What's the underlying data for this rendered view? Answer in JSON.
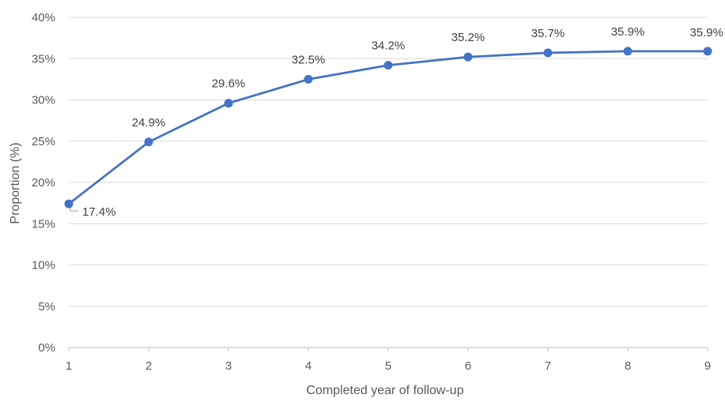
{
  "chart_data": {
    "type": "line",
    "title": "",
    "xlabel": "Completed year of follow-up",
    "ylabel": "Proportion (%)",
    "x": [
      1,
      2,
      3,
      4,
      5,
      6,
      7,
      8,
      9
    ],
    "x_tick_labels": [
      "1",
      "2",
      "3",
      "4",
      "5",
      "6",
      "7",
      "8",
      "9"
    ],
    "series": [
      {
        "values": [
          17.4,
          24.9,
          29.6,
          32.5,
          34.2,
          35.2,
          35.7,
          35.9,
          35.9
        ],
        "data_labels": [
          "17.4%",
          "24.9%",
          "29.6%",
          "32.5%",
          "34.2%",
          "35.2%",
          "35.7%",
          "35.9%",
          "35.9%"
        ],
        "color": "#4472C4"
      }
    ],
    "ylim": [
      0,
      40
    ],
    "xlim": [
      1,
      9
    ],
    "y_ticks": [
      0,
      5,
      10,
      15,
      20,
      25,
      30,
      35,
      40
    ],
    "y_tick_labels": [
      "0%",
      "5%",
      "10%",
      "15%",
      "20%",
      "25%",
      "30%",
      "35%",
      "40%"
    ],
    "grid": true,
    "legend": "none",
    "colors": {
      "line": "#4472C4",
      "grid": "#D9D9D9",
      "axis": "#BFBFBF",
      "text": "#595959"
    }
  }
}
